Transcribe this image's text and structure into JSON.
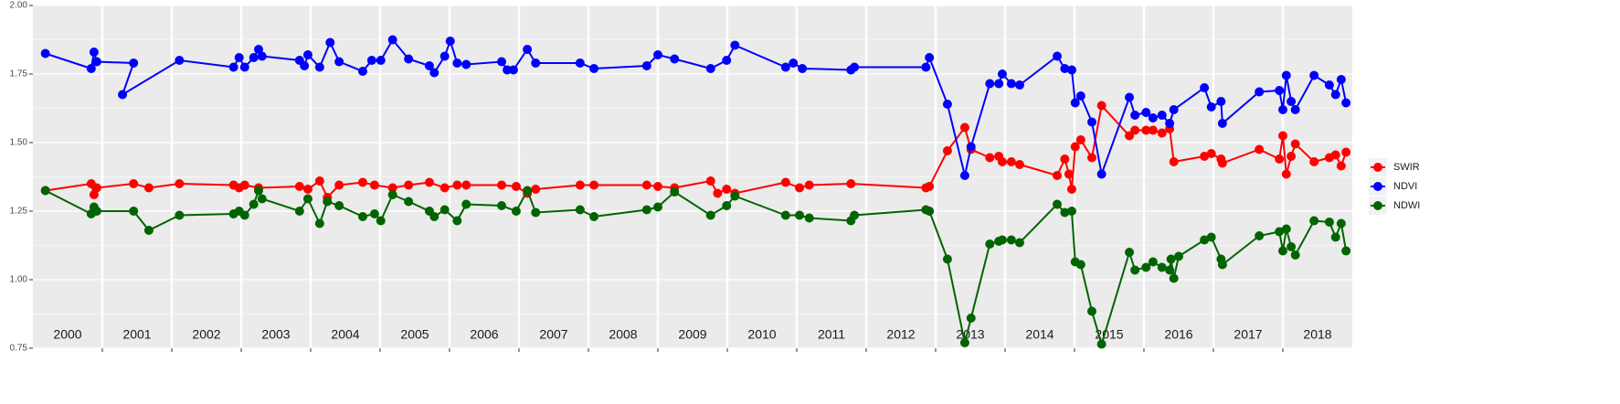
{
  "chart_data": {
    "type": "line",
    "xlim": [
      2000,
      2019
    ],
    "xticks": [
      2001,
      2002,
      2003,
      2004,
      2005,
      2006,
      2007,
      2008,
      2009,
      2010,
      2011,
      2012,
      2013,
      2014,
      2015,
      2016,
      2017,
      2018
    ],
    "year_labels": [
      "2000",
      "2001",
      "2002",
      "2003",
      "2004",
      "2005",
      "2006",
      "2007",
      "2008",
      "2009",
      "2010",
      "2011",
      "2012",
      "2013",
      "2014",
      "2015",
      "2016",
      "2017",
      "2018"
    ],
    "ylim": [
      0.75,
      2.0
    ],
    "yticks": [
      {
        "value": 0.75,
        "label": "0.75"
      },
      {
        "value": 1.0,
        "label": "1.00"
      },
      {
        "value": 1.25,
        "label": "1.25"
      },
      {
        "value": 1.5,
        "label": "1.50"
      },
      {
        "value": 1.75,
        "label": "1.75"
      },
      {
        "value": 2.0,
        "label": "2.00"
      }
    ],
    "grid": true,
    "legend": "right",
    "series": [
      {
        "name": "SWIR",
        "color": "#ff0000",
        "x": [
          2000.18,
          2000.84,
          2000.88,
          2000.92,
          2001.45,
          2001.67,
          2002.11,
          2002.89,
          2002.97,
          2003.05,
          2003.25,
          2003.84,
          2003.96,
          2004.13,
          2004.24,
          2004.41,
          2004.75,
          2004.92,
          2005.18,
          2005.41,
          2005.71,
          2005.93,
          2006.11,
          2006.24,
          2006.75,
          2006.96,
          2007.12,
          2007.24,
          2007.88,
          2008.08,
          2008.84,
          2009.0,
          2009.24,
          2009.76,
          2009.86,
          2009.99,
          2010.11,
          2010.84,
          2011.04,
          2011.18,
          2011.78,
          2012.86,
          2012.91,
          2013.17,
          2013.42,
          2013.51,
          2013.78,
          2013.91,
          2013.96,
          2014.09,
          2014.21,
          2014.75,
          2014.86,
          2014.92,
          2014.96,
          2015.01,
          2015.09,
          2015.25,
          2015.39,
          2015.79,
          2015.87,
          2016.03,
          2016.13,
          2016.26,
          2016.37,
          2016.43,
          2016.87,
          2016.97,
          2017.11,
          2017.13,
          2017.66,
          2017.95,
          2018.0,
          2018.05,
          2018.12,
          2018.18,
          2018.45,
          2018.67,
          2018.76,
          2018.84,
          2018.91
        ],
        "values": [
          1.325,
          1.35,
          1.31,
          1.335,
          1.35,
          1.335,
          1.35,
          1.345,
          1.335,
          1.345,
          1.335,
          1.34,
          1.33,
          1.36,
          1.3,
          1.345,
          1.355,
          1.345,
          1.335,
          1.345,
          1.355,
          1.335,
          1.345,
          1.345,
          1.345,
          1.34,
          1.315,
          1.33,
          1.345,
          1.345,
          1.345,
          1.34,
          1.335,
          1.36,
          1.315,
          1.33,
          1.315,
          1.355,
          1.335,
          1.345,
          1.35,
          1.335,
          1.34,
          1.47,
          1.555,
          1.475,
          1.445,
          1.45,
          1.43,
          1.43,
          1.42,
          1.38,
          1.44,
          1.385,
          1.33,
          1.485,
          1.51,
          1.445,
          1.635,
          1.525,
          1.545,
          1.545,
          1.545,
          1.535,
          1.55,
          1.43,
          1.45,
          1.46,
          1.44,
          1.425,
          1.475,
          1.44,
          1.525,
          1.385,
          1.45,
          1.495,
          1.43,
          1.445,
          1.455,
          1.415,
          1.465
        ]
      },
      {
        "name": "NDVI",
        "color": "#0000ff",
        "x": [
          2000.18,
          2000.84,
          2000.88,
          2000.92,
          2001.45,
          2001.29,
          2002.11,
          2002.89,
          2002.97,
          2003.05,
          2003.18,
          2003.25,
          2003.3,
          2003.84,
          2003.91,
          2003.96,
          2004.13,
          2004.28,
          2004.41,
          2004.75,
          2004.88,
          2005.01,
          2005.18,
          2005.41,
          2005.71,
          2005.78,
          2005.93,
          2006.01,
          2006.11,
          2006.24,
          2006.75,
          2006.83,
          2006.92,
          2007.12,
          2007.24,
          2007.88,
          2008.08,
          2008.84,
          2009.0,
          2009.24,
          2009.76,
          2009.99,
          2010.11,
          2010.84,
          2010.95,
          2011.08,
          2011.78,
          2011.83,
          2012.86,
          2012.91,
          2013.17,
          2013.42,
          2013.51,
          2013.78,
          2013.91,
          2013.96,
          2014.09,
          2014.21,
          2014.75,
          2014.86,
          2014.96,
          2015.01,
          2015.09,
          2015.25,
          2015.39,
          2015.79,
          2015.87,
          2016.03,
          2016.13,
          2016.26,
          2016.37,
          2016.43,
          2016.87,
          2016.97,
          2017.11,
          2017.13,
          2017.66,
          2017.95,
          2018.0,
          2018.05,
          2018.12,
          2018.18,
          2018.45,
          2018.67,
          2018.76,
          2018.84,
          2018.91
        ],
        "values": [
          1.825,
          1.77,
          1.83,
          1.795,
          1.79,
          1.675,
          1.8,
          1.775,
          1.81,
          1.775,
          1.81,
          1.84,
          1.815,
          1.8,
          1.78,
          1.82,
          1.775,
          1.865,
          1.795,
          1.76,
          1.8,
          1.8,
          1.875,
          1.805,
          1.78,
          1.755,
          1.815,
          1.87,
          1.79,
          1.785,
          1.795,
          1.765,
          1.765,
          1.84,
          1.79,
          1.79,
          1.77,
          1.78,
          1.82,
          1.805,
          1.77,
          1.8,
          1.855,
          1.775,
          1.79,
          1.77,
          1.765,
          1.775,
          1.775,
          1.81,
          1.64,
          1.38,
          1.485,
          1.715,
          1.715,
          1.75,
          1.715,
          1.71,
          1.815,
          1.77,
          1.765,
          1.645,
          1.67,
          1.575,
          1.385,
          1.665,
          1.6,
          1.61,
          1.59,
          1.6,
          1.57,
          1.62,
          1.7,
          1.63,
          1.65,
          1.57,
          1.685,
          1.69,
          1.62,
          1.745,
          1.65,
          1.62,
          1.745,
          1.71,
          1.675,
          1.73,
          1.645
        ]
      },
      {
        "name": "NDWI",
        "color": "#006400",
        "x": [
          2000.18,
          2000.84,
          2000.88,
          2000.92,
          2001.45,
          2001.67,
          2002.11,
          2002.89,
          2002.97,
          2003.05,
          2003.18,
          2003.25,
          2003.3,
          2003.84,
          2003.96,
          2004.13,
          2004.24,
          2004.41,
          2004.75,
          2004.92,
          2005.01,
          2005.18,
          2005.41,
          2005.71,
          2005.78,
          2005.93,
          2006.11,
          2006.24,
          2006.75,
          2006.96,
          2007.12,
          2007.24,
          2007.88,
          2008.08,
          2008.84,
          2009.0,
          2009.24,
          2009.76,
          2009.99,
          2010.11,
          2010.84,
          2011.04,
          2011.18,
          2011.78,
          2011.83,
          2012.86,
          2012.91,
          2013.17,
          2013.42,
          2013.51,
          2013.78,
          2013.91,
          2013.96,
          2014.09,
          2014.21,
          2014.75,
          2014.86,
          2014.96,
          2015.01,
          2015.09,
          2015.25,
          2015.39,
          2015.79,
          2015.87,
          2016.03,
          2016.13,
          2016.26,
          2016.37,
          2016.39,
          2016.43,
          2016.5,
          2016.87,
          2016.97,
          2017.11,
          2017.13,
          2017.66,
          2017.95,
          2018.0,
          2018.05,
          2018.12,
          2018.18,
          2018.45,
          2018.67,
          2018.76,
          2018.84,
          2018.91
        ],
        "values": [
          1.325,
          1.24,
          1.265,
          1.25,
          1.25,
          1.18,
          1.235,
          1.24,
          1.25,
          1.235,
          1.275,
          1.325,
          1.295,
          1.25,
          1.295,
          1.205,
          1.285,
          1.27,
          1.23,
          1.24,
          1.215,
          1.31,
          1.285,
          1.25,
          1.23,
          1.255,
          1.215,
          1.275,
          1.27,
          1.25,
          1.325,
          1.245,
          1.255,
          1.23,
          1.255,
          1.265,
          1.32,
          1.235,
          1.27,
          1.305,
          1.235,
          1.235,
          1.225,
          1.215,
          1.235,
          1.255,
          1.25,
          1.075,
          0.77,
          0.86,
          1.13,
          1.14,
          1.145,
          1.145,
          1.135,
          1.275,
          1.245,
          1.25,
          1.065,
          1.055,
          0.885,
          0.765,
          1.1,
          1.035,
          1.045,
          1.065,
          1.045,
          1.035,
          1.075,
          1.005,
          1.085,
          1.145,
          1.155,
          1.075,
          1.055,
          1.16,
          1.175,
          1.105,
          1.185,
          1.12,
          1.09,
          1.215,
          1.21,
          1.155,
          1.205,
          1.105
        ]
      }
    ]
  }
}
